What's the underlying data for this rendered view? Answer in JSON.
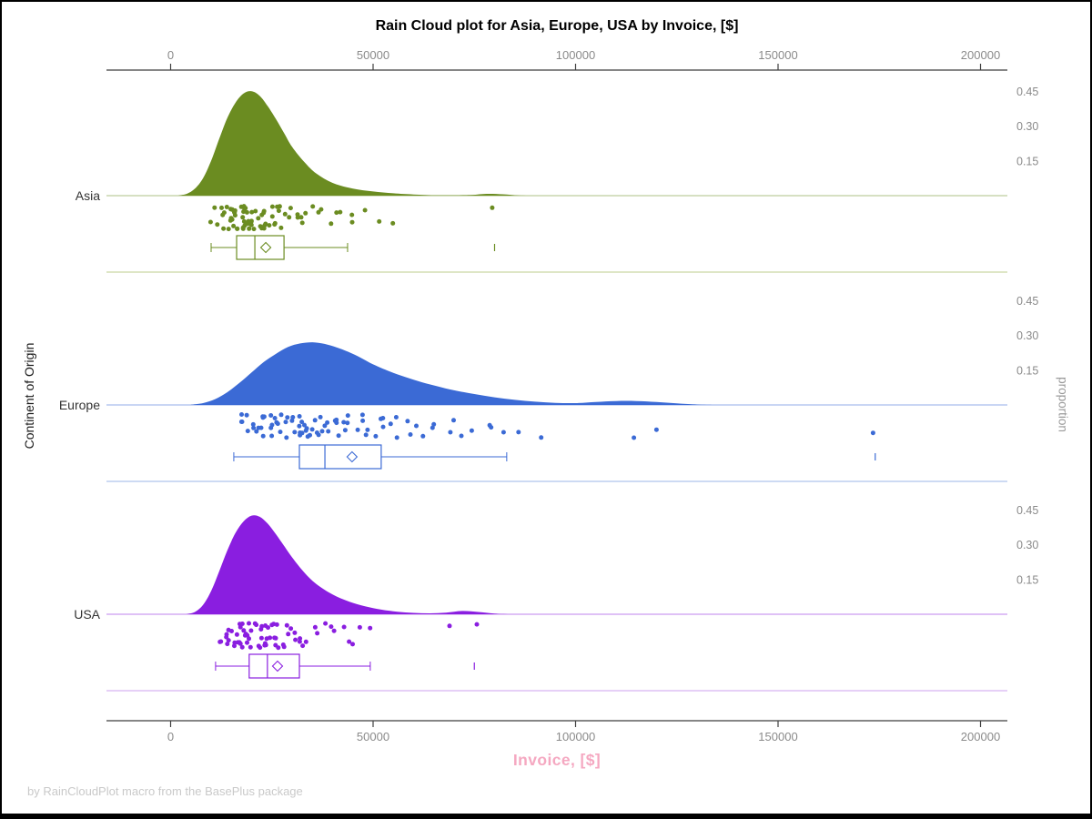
{
  "chart_data": {
    "type": "raincloud",
    "title": "Rain Cloud plot for Asia, Europe, USA by Invoice, [$]",
    "xlabel": "Invoice, [$]",
    "ylabel_left": "Continent of Origin",
    "ylabel_right": "proportion",
    "footnote": "by RainCloudPlot macro from the BasePlus package",
    "x_ticks": [
      0,
      50000,
      100000,
      150000,
      200000
    ],
    "xlim": [
      -15800,
      206600
    ],
    "proportion_tick_labels": [
      "0.45",
      "0.30",
      "0.15"
    ],
    "proportion_tick_values": [
      0.45,
      0.3,
      0.15
    ],
    "grid": false,
    "legend": "none",
    "style": {
      "title_color": "#000000",
      "xlabel_color": "#F5A8C1",
      "tick_label_color": "#8a8a8a",
      "axis_line_color": "#3f3f3f",
      "footnote_color": "#c9c9c9",
      "ylabel_left_color": "#1a1a1a",
      "ylabel_right_color": "#9a9a9a",
      "category_label_color": "#333333",
      "box_fill": "#ffffff"
    },
    "groups": [
      {
        "label": "Asia",
        "color": "#6B8C21",
        "light_color": "#CBD7A4",
        "density": [
          [
            2000,
            0.001
          ],
          [
            4000,
            0.008
          ],
          [
            6000,
            0.03
          ],
          [
            8000,
            0.075
          ],
          [
            10000,
            0.15
          ],
          [
            12000,
            0.245
          ],
          [
            14000,
            0.335
          ],
          [
            16000,
            0.4
          ],
          [
            18000,
            0.44
          ],
          [
            20000,
            0.45
          ],
          [
            22000,
            0.43
          ],
          [
            24000,
            0.385
          ],
          [
            26000,
            0.33
          ],
          [
            28000,
            0.27
          ],
          [
            30000,
            0.21
          ],
          [
            33000,
            0.145
          ],
          [
            36000,
            0.095
          ],
          [
            40000,
            0.055
          ],
          [
            45000,
            0.03
          ],
          [
            50000,
            0.018
          ],
          [
            55000,
            0.01
          ],
          [
            60000,
            0.005
          ],
          [
            66000,
            0.002
          ],
          [
            74000,
            0.003
          ],
          [
            78000,
            0.008
          ],
          [
            82000,
            0.006
          ],
          [
            86000,
            0.001
          ],
          [
            90000,
            0.0
          ]
        ],
        "box": {
          "whisker_low": 10000,
          "q1": 16300,
          "median": 20800,
          "q3": 28000,
          "whisker_high": 43700,
          "mean": 23500,
          "outliers": [
            80000
          ]
        },
        "points": [
          11200,
          11800,
          12300,
          12600,
          12900,
          13100,
          13400,
          13600,
          13900,
          14100,
          14300,
          14600,
          14800,
          15000,
          15200,
          15400,
          15700,
          15900,
          16100,
          16300,
          16600,
          16800,
          17000,
          17200,
          17500,
          17700,
          17900,
          18100,
          18400,
          18600,
          18800,
          19000,
          19300,
          19500,
          19700,
          20000,
          20200,
          20400,
          20700,
          20900,
          21100,
          21400,
          21600,
          21900,
          22100,
          22400,
          22700,
          23000,
          23300,
          23600,
          23900,
          24200,
          24600,
          25000,
          25400,
          25800,
          26200,
          26700,
          27200,
          27700,
          28300,
          28900,
          29500,
          30200,
          31000,
          31800,
          32700,
          33700,
          34800,
          36000,
          37300,
          38800,
          40400,
          42200,
          44200,
          46400,
          48800,
          51500,
          54500,
          80000
        ]
      },
      {
        "label": "Europe",
        "color": "#3B6AD5",
        "light_color": "#AFC4EC",
        "density": [
          [
            5000,
            0.001
          ],
          [
            8000,
            0.008
          ],
          [
            11000,
            0.025
          ],
          [
            14000,
            0.055
          ],
          [
            17000,
            0.095
          ],
          [
            20000,
            0.14
          ],
          [
            23000,
            0.185
          ],
          [
            26000,
            0.22
          ],
          [
            29000,
            0.25
          ],
          [
            32000,
            0.265
          ],
          [
            35000,
            0.27
          ],
          [
            38000,
            0.263
          ],
          [
            41000,
            0.248
          ],
          [
            44000,
            0.228
          ],
          [
            47000,
            0.203
          ],
          [
            50000,
            0.175
          ],
          [
            54000,
            0.145
          ],
          [
            58000,
            0.12
          ],
          [
            62000,
            0.098
          ],
          [
            66000,
            0.08
          ],
          [
            70000,
            0.063
          ],
          [
            75000,
            0.047
          ],
          [
            80000,
            0.033
          ],
          [
            85000,
            0.022
          ],
          [
            90000,
            0.014
          ],
          [
            95000,
            0.009
          ],
          [
            100000,
            0.008
          ],
          [
            105000,
            0.013
          ],
          [
            110000,
            0.017
          ],
          [
            115000,
            0.017
          ],
          [
            120000,
            0.013
          ],
          [
            125000,
            0.007
          ],
          [
            130000,
            0.002
          ],
          [
            134000,
            0.0
          ]
        ],
        "box": {
          "whisker_low": 15600,
          "q1": 31800,
          "median": 38100,
          "q3": 52000,
          "whisker_high": 83000,
          "mean": 44800,
          "outliers": [
            174000
          ]
        },
        "points": [
          17500,
          18200,
          19000,
          19600,
          20100,
          20700,
          21200,
          21700,
          22100,
          22600,
          23000,
          23400,
          23900,
          24300,
          24700,
          25100,
          25500,
          25900,
          26300,
          26700,
          27100,
          27500,
          27900,
          28300,
          28700,
          29100,
          29500,
          29900,
          30300,
          30700,
          31100,
          31500,
          31900,
          32300,
          32700,
          33100,
          33500,
          34000,
          34400,
          34900,
          35300,
          35800,
          36300,
          36800,
          37300,
          37800,
          38300,
          38900,
          39400,
          40000,
          40600,
          41200,
          41900,
          42500,
          43200,
          43900,
          44700,
          45500,
          46300,
          47100,
          48000,
          48900,
          49900,
          50900,
          52000,
          53100,
          54300,
          55500,
          56800,
          58200,
          59700,
          61200,
          62900,
          64600,
          66500,
          68500,
          70600,
          72800,
          75200,
          77800,
          80600,
          83600,
          86800,
          90300,
          113000,
          120000,
          174000
        ]
      },
      {
        "label": "USA",
        "color": "#8A1EE0",
        "light_color": "#D7B5F2",
        "density": [
          [
            4000,
            0.001
          ],
          [
            6000,
            0.01
          ],
          [
            8000,
            0.04
          ],
          [
            10000,
            0.1
          ],
          [
            12000,
            0.185
          ],
          [
            14000,
            0.275
          ],
          [
            16000,
            0.35
          ],
          [
            18000,
            0.4
          ],
          [
            20000,
            0.425
          ],
          [
            22000,
            0.42
          ],
          [
            24000,
            0.39
          ],
          [
            26000,
            0.345
          ],
          [
            28000,
            0.295
          ],
          [
            30000,
            0.245
          ],
          [
            33000,
            0.18
          ],
          [
            36000,
            0.13
          ],
          [
            40000,
            0.085
          ],
          [
            44000,
            0.055
          ],
          [
            48000,
            0.034
          ],
          [
            52000,
            0.02
          ],
          [
            56000,
            0.011
          ],
          [
            60000,
            0.006
          ],
          [
            64000,
            0.004
          ],
          [
            68000,
            0.007
          ],
          [
            72000,
            0.014
          ],
          [
            76000,
            0.01
          ],
          [
            80000,
            0.003
          ],
          [
            84000,
            0.0
          ]
        ],
        "box": {
          "whisker_low": 11100,
          "q1": 19400,
          "median": 23900,
          "q3": 31800,
          "whisker_high": 49300,
          "mean": 26400,
          "outliers": [
            75000
          ]
        },
        "points": [
          12500,
          12800,
          13100,
          13600,
          14000,
          14400,
          14700,
          15000,
          15300,
          15600,
          15900,
          16200,
          16400,
          16700,
          16900,
          17200,
          17400,
          17700,
          17900,
          18200,
          18400,
          18700,
          18900,
          19200,
          19400,
          19700,
          19900,
          20200,
          20400,
          20700,
          21000,
          21200,
          21500,
          21800,
          22100,
          22400,
          22700,
          23000,
          23300,
          23600,
          24000,
          24300,
          24700,
          25100,
          25500,
          25900,
          26300,
          26800,
          27300,
          27800,
          28300,
          28900,
          29500,
          30100,
          30800,
          31500,
          32300,
          33100,
          34000,
          35000,
          36100,
          37300,
          38600,
          40000,
          41600,
          43300,
          45200,
          47300,
          49600,
          70000,
          75000
        ]
      }
    ]
  }
}
